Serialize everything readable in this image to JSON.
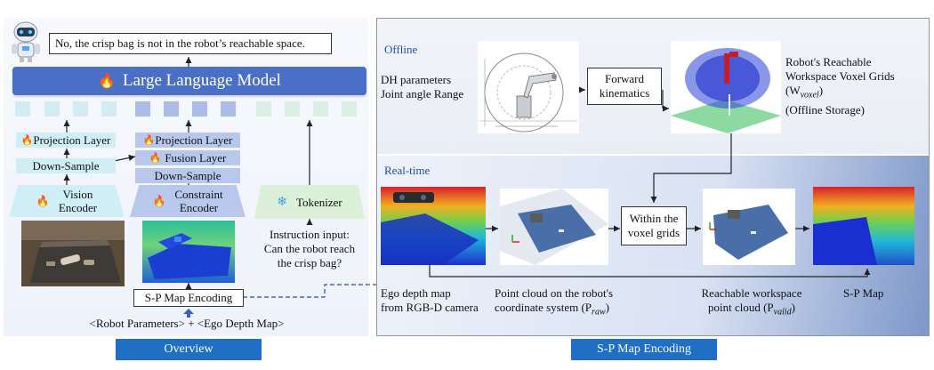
{
  "overview": {
    "answer": "No, the crisp bag is not in the robot’s reachable space.",
    "llm_label": "Large Language Model",
    "projection_left": "Projection Layer",
    "downsample_left": "Down-Sample",
    "vision_encoder": [
      "Vision",
      "Encoder"
    ],
    "projection_mid": "Projection Layer",
    "fusion_layer": "Fusion Layer",
    "downsample_mid": "Down-Sample",
    "constraint_encoder": [
      "Constraint",
      "Encoder"
    ],
    "tokenizer": "Tokenizer",
    "instruction": [
      "Instruction input:",
      "Can the robot reach",
      "the crisp bag?"
    ],
    "sp_map_encoding": "S-P Map Encoding",
    "bottom_input": "<Robot Parameters> + <Ego Depth Map>",
    "tab_label": "Overview"
  },
  "sp": {
    "offline_label": "Offline",
    "realtime_label": "Real-time",
    "dh_params": [
      "DH parameters",
      "Joint angle Range"
    ],
    "forward_kinematics": [
      "Forward",
      "kinematics"
    ],
    "reachable_grids": [
      "Robot's Reachable",
      "Workspace Voxel Grids",
      "(W",
      "voxel",
      ")",
      "(Offline Storage)"
    ],
    "within_grids": [
      "Within the",
      "voxel grids"
    ],
    "ego_depth": [
      "Ego depth map",
      "from RGB-D camera"
    ],
    "point_cloud": [
      "Point cloud on the robot's",
      "coordinate system (P",
      "raw",
      ")"
    ],
    "reachable_cloud": [
      "Reachable workspace",
      "point cloud (P",
      "valid",
      ")"
    ],
    "sp_map": "S-P Map",
    "tab_label": "S-P Map Encoding"
  },
  "colors": {
    "llm": "#4a6fc7",
    "tab": "#1f6fc4",
    "teal": "#cfeef5",
    "blue": "#b8c8ec",
    "green": "#dcefd8"
  },
  "icons": {
    "robot": "robot-avatar-icon",
    "flame": "flame-icon",
    "snowflake": "snowflake-icon"
  }
}
